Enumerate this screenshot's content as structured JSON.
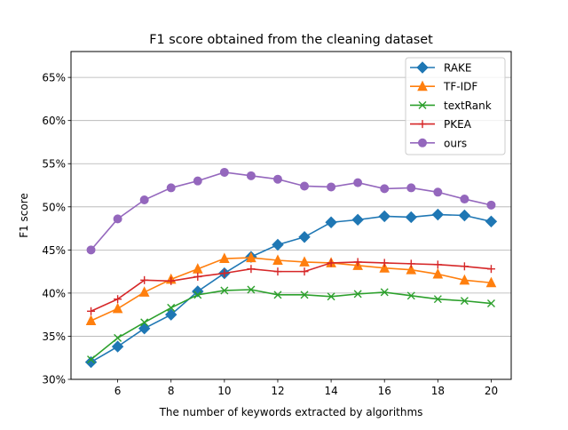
{
  "chart_data": {
    "type": "line",
    "title": "F1 score obtained from the cleaning dataset",
    "xlabel": "The number of keywords extracted by algorithms",
    "ylabel": "F1 score",
    "x": [
      5,
      6,
      7,
      8,
      9,
      10,
      11,
      12,
      13,
      14,
      15,
      16,
      17,
      18,
      19,
      20
    ],
    "xlim": [
      4.25,
      20.75
    ],
    "ylim": [
      30,
      68
    ],
    "x_ticks": [
      6,
      8,
      10,
      12,
      14,
      16,
      18,
      20
    ],
    "y_ticks": [
      30,
      35,
      40,
      45,
      50,
      55,
      60,
      65
    ],
    "y_tick_labels": [
      "30%",
      "35%",
      "40%",
      "45%",
      "50%",
      "55%",
      "60%",
      "65%"
    ],
    "grid": "horizontal",
    "legend_position": "top-right",
    "series": [
      {
        "name": "RAKE",
        "color": "#1f77b4",
        "marker": "diamond",
        "values": [
          32.0,
          33.8,
          35.9,
          37.5,
          40.2,
          42.3,
          44.2,
          45.6,
          46.5,
          48.2,
          48.5,
          48.9,
          48.8,
          49.1,
          49.0,
          48.3
        ]
      },
      {
        "name": "TF-IDF",
        "color": "#ff7f0e",
        "marker": "triangle",
        "values": [
          36.8,
          38.2,
          40.1,
          41.6,
          42.8,
          44.0,
          44.1,
          43.8,
          43.6,
          43.5,
          43.2,
          42.9,
          42.7,
          42.2,
          41.5,
          41.2
        ]
      },
      {
        "name": "textRank",
        "color": "#2ca02c",
        "marker": "x",
        "values": [
          32.3,
          34.8,
          36.6,
          38.3,
          39.8,
          40.3,
          40.4,
          39.8,
          39.8,
          39.6,
          39.9,
          40.1,
          39.7,
          39.3,
          39.1,
          38.8
        ]
      },
      {
        "name": "PKEA",
        "color": "#d62728",
        "marker": "plus",
        "values": [
          37.9,
          39.3,
          41.5,
          41.4,
          41.9,
          42.3,
          42.8,
          42.5,
          42.5,
          43.5,
          43.6,
          43.5,
          43.4,
          43.3,
          43.1,
          42.8
        ]
      },
      {
        "name": "ours",
        "color": "#9467bd",
        "marker": "circle",
        "values": [
          45.0,
          48.6,
          50.8,
          52.2,
          53.0,
          54.0,
          53.6,
          53.2,
          52.4,
          52.3,
          52.8,
          52.1,
          52.2,
          51.7,
          50.9,
          50.2
        ]
      }
    ]
  }
}
